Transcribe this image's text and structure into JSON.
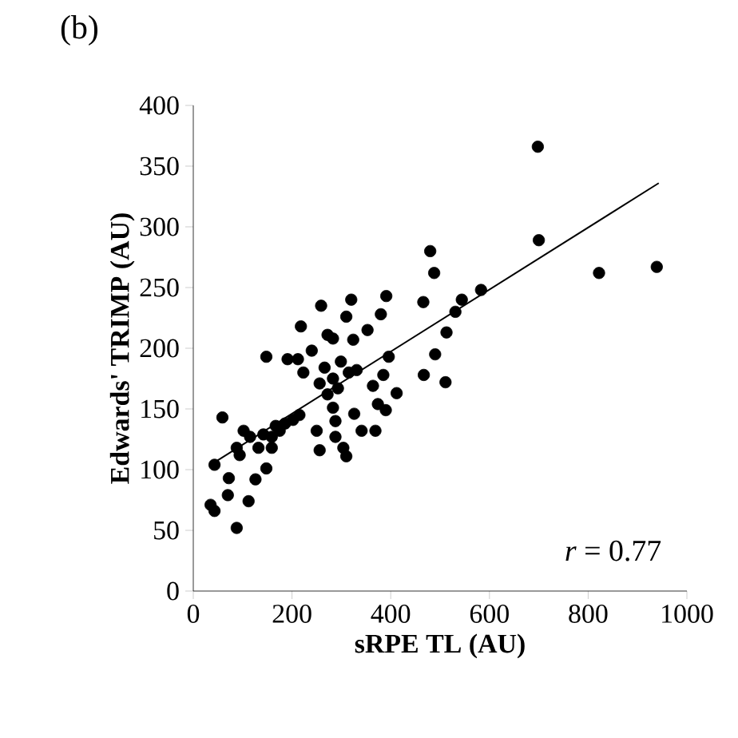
{
  "chart_data": {
    "type": "scatter",
    "title": "(b)",
    "xlabel": "sRPE TL (AU)",
    "ylabel": "Edwards' TRIMP (AU)",
    "xlim": [
      0,
      1000
    ],
    "xticks": [
      0,
      200,
      400,
      600,
      800,
      1000
    ],
    "ylim": [
      0,
      400
    ],
    "yticks": [
      0,
      50,
      100,
      150,
      200,
      250,
      300,
      350,
      400
    ],
    "annotations": [
      "*r* = 0.77"
    ],
    "series": [
      {
        "color": "#000000",
        "marker": "circle",
        "x": [
          698,
          700,
          822,
          939,
          480,
          488,
          466,
          583,
          544,
          531,
          513,
          490,
          467,
          511,
          391,
          380,
          320,
          310,
          259,
          218,
          353,
          324,
          272,
          283,
          240,
          148,
          191,
          212,
          223,
          396,
          385,
          364,
          412,
          374,
          390,
          326,
          341,
          369,
          250,
          288,
          256,
          304,
          310,
          283,
          266,
          299,
          293,
          272,
          315,
          331,
          256,
          283,
          288,
          59,
          43,
          102,
          115,
          88,
          94,
          132,
          159,
          167,
          186,
          202,
          215,
          148,
          126,
          72,
          70,
          112,
          35,
          43,
          88,
          142,
          175,
          159
        ],
        "values": [
          366,
          289,
          262,
          267,
          280,
          262,
          238,
          248,
          240,
          230,
          213,
          195,
          178,
          172,
          243,
          228,
          240,
          226,
          235,
          218,
          215,
          207,
          211,
          208,
          198,
          193,
          191,
          191,
          180,
          193,
          178,
          169,
          163,
          154,
          149,
          146,
          132,
          132,
          132,
          127,
          116,
          118,
          111,
          175,
          184,
          189,
          167,
          162,
          180,
          182,
          171,
          151,
          140,
          143,
          104,
          132,
          127,
          118,
          112,
          118,
          118,
          136,
          138,
          141,
          145,
          101,
          92,
          93,
          79,
          74,
          71,
          66,
          52,
          129,
          132,
          127
        ]
      },
      {
        "type": "line",
        "color": "#000000",
        "marker": "none",
        "x": [
          43,
          943
        ],
        "values": [
          106,
          336
        ]
      }
    ]
  }
}
